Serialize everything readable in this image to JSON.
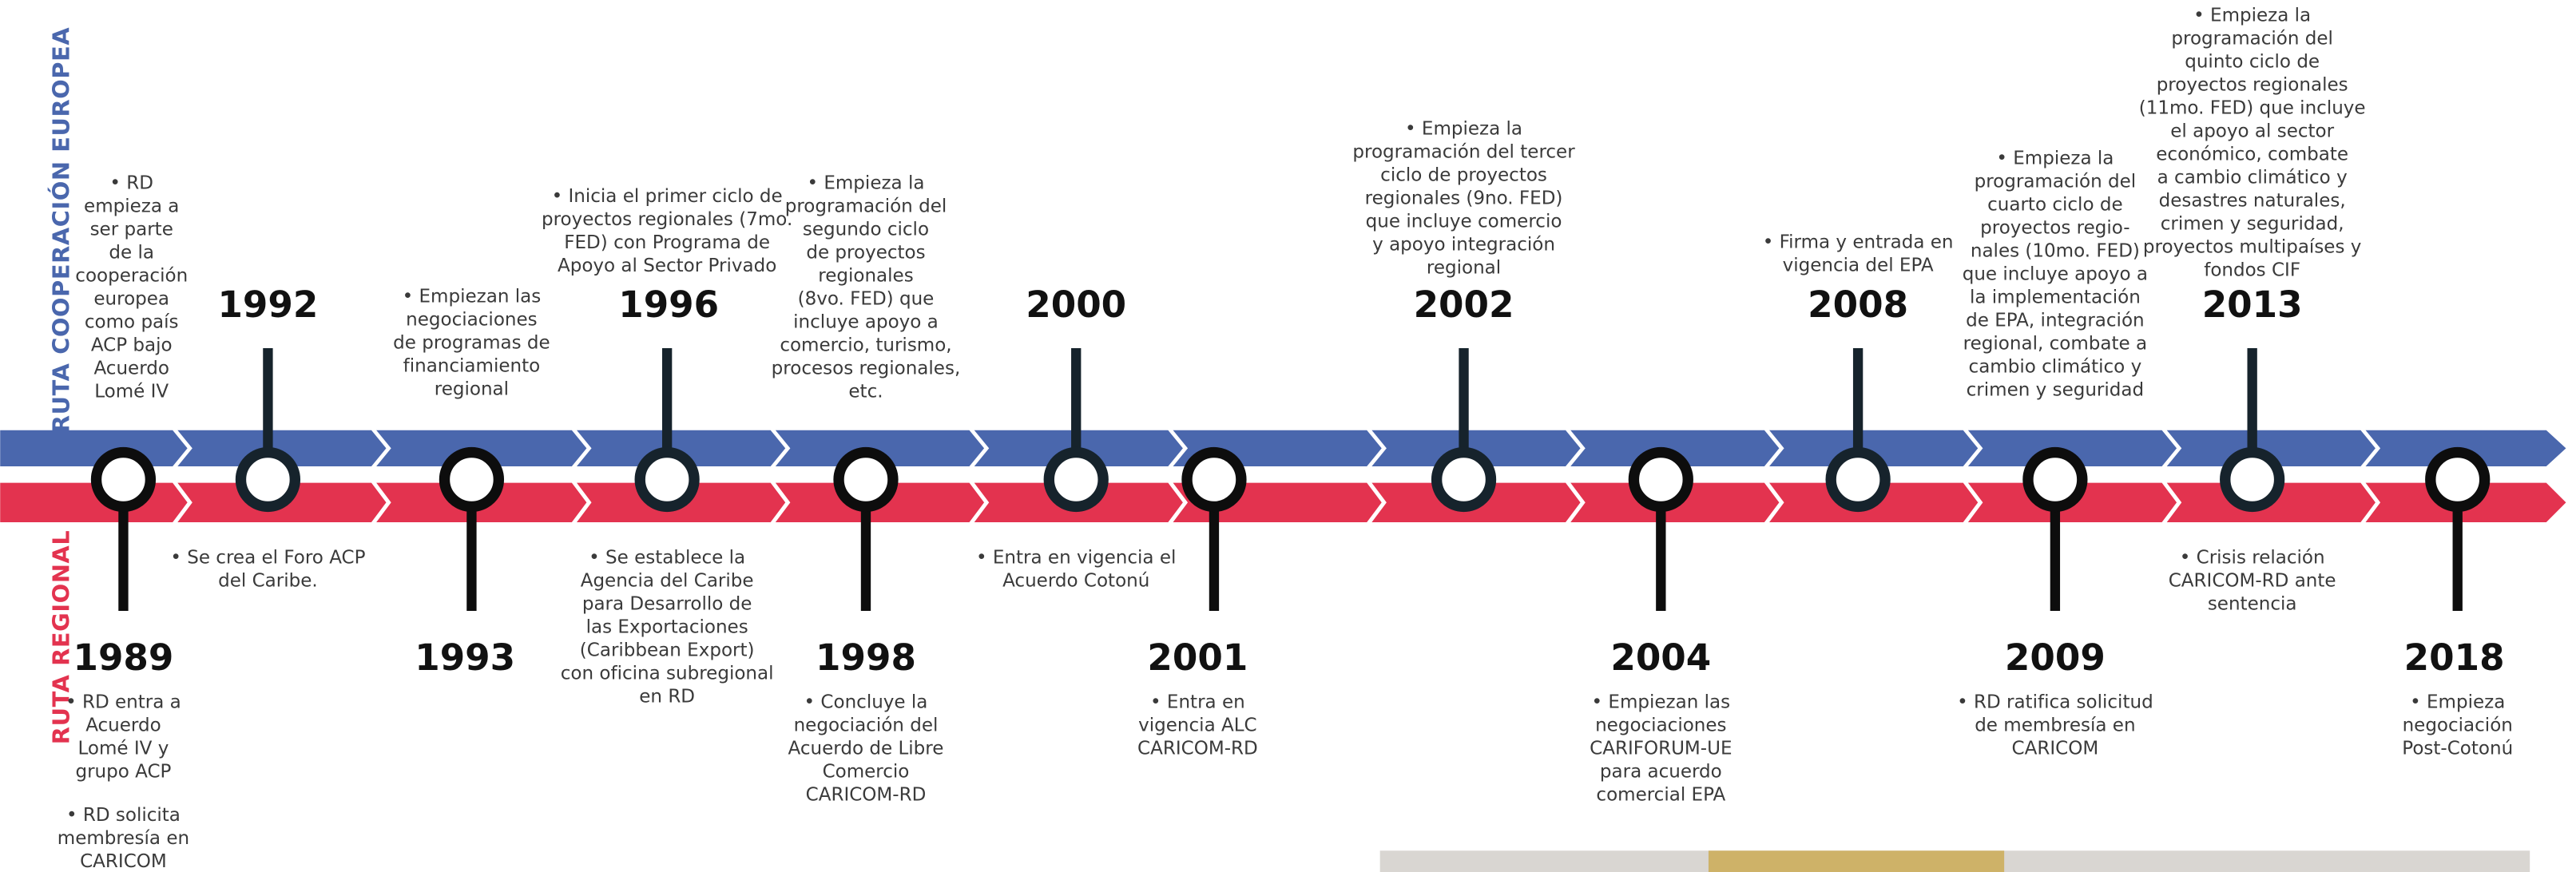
{
  "labels": {
    "europe": "RUTA COOPERACIÓN EUROPEA",
    "regional": "RUTA REGIONAL"
  },
  "milestones": [
    {
      "year": "1989"
    },
    {
      "year": "1992"
    },
    {
      "year": "1993"
    },
    {
      "year": "1996"
    },
    {
      "year": "1998"
    },
    {
      "year": "2000"
    },
    {
      "year": "2001"
    },
    {
      "year": "2002"
    },
    {
      "year": "2004"
    },
    {
      "year": "2008"
    },
    {
      "year": "2009"
    },
    {
      "year": "2013"
    },
    {
      "year": "2018"
    }
  ],
  "top_notes": [
    {
      "lines": [
        "• RD",
        "empieza a",
        "ser parte",
        "de la",
        "cooperación",
        "europea",
        "como país",
        "ACP bajo",
        "Acuerdo",
        "Lomé IV"
      ]
    },
    {
      "lines": [
        "• Empiezan las",
        "negociaciones",
        "de programas de",
        "financiamiento",
        "regional"
      ]
    },
    {
      "lines": [
        "• Inicia el primer ciclo de",
        "proyectos regionales (7mo.",
        "FED) con Programa de",
        "Apoyo al Sector Privado"
      ]
    },
    {
      "lines": [
        "• Empieza la",
        "programación del",
        "segundo ciclo",
        "de proyectos",
        "regionales",
        "(8vo. FED) que",
        "incluye apoyo a",
        "comercio, turismo,",
        "procesos regionales,",
        "etc."
      ]
    },
    {
      "lines": [
        "• Empieza la",
        "programación del tercer",
        "ciclo de proyectos",
        "regionales (9no. FED)",
        "que incluye comercio",
        "y apoyo integración",
        "regional"
      ]
    },
    {
      "lines": [
        "• Firma y entrada en",
        "vigencia del EPA"
      ]
    },
    {
      "lines": [
        "• Empieza la",
        "programación del",
        "cuarto ciclo de",
        "proyectos regio-",
        "nales (10mo. FED)",
        "que incluye apoyo a",
        "la implementación",
        "de EPA, integración",
        "regional, combate a",
        "cambio climático y",
        "crimen y seguridad"
      ]
    },
    {
      "lines": [
        "• Empieza la",
        "programación del",
        "quinto ciclo de",
        "proyectos regionales",
        "(11mo. FED) que incluye",
        "el apoyo al sector",
        "económico, combate",
        "a cambio climático y",
        "desastres naturales,",
        "crimen y seguridad,",
        "proyectos multipaíses y",
        "fondos CIF"
      ]
    }
  ],
  "bottom_notes": [
    {
      "lines": [
        "• Se crea el Foro ACP",
        "del Caribe."
      ]
    },
    {
      "lines": [
        "• Se establece la",
        "Agencia del Caribe",
        "para Desarrollo de",
        "las Exportaciones",
        "(Caribbean Export)",
        "con oficina subregional",
        "en RD"
      ]
    },
    {
      "lines": [
        "• Entra en vigencia el",
        "Acuerdo Cotonú"
      ]
    },
    {
      "lines": [
        "• Crisis relación",
        "CARICOM-RD ante",
        "sentencia"
      ]
    },
    {
      "lines": [
        "• RD entra a",
        "Acuerdo",
        "Lomé IV y",
        "grupo ACP"
      ]
    },
    {
      "lines": [
        "• RD solicita",
        "membresía en",
        "CARICOM"
      ]
    },
    {
      "lines": [
        "• Concluye la",
        "negociación del",
        "Acuerdo de Libre",
        "Comercio",
        "CARICOM-RD"
      ]
    },
    {
      "lines": [
        "• Entra en",
        "vigencia ALC",
        "CARICOM-RD"
      ]
    },
    {
      "lines": [
        "• Empiezan las",
        "negociaciones",
        "CARIFORUM-UE",
        "para acuerdo",
        "comercial EPA"
      ]
    },
    {
      "lines": [
        "• RD ratifica solicitud",
        "de membresía en",
        "CARICOM"
      ]
    },
    {
      "lines": [
        "• Empieza",
        "negociación",
        "Post-Cotonú"
      ]
    }
  ]
}
